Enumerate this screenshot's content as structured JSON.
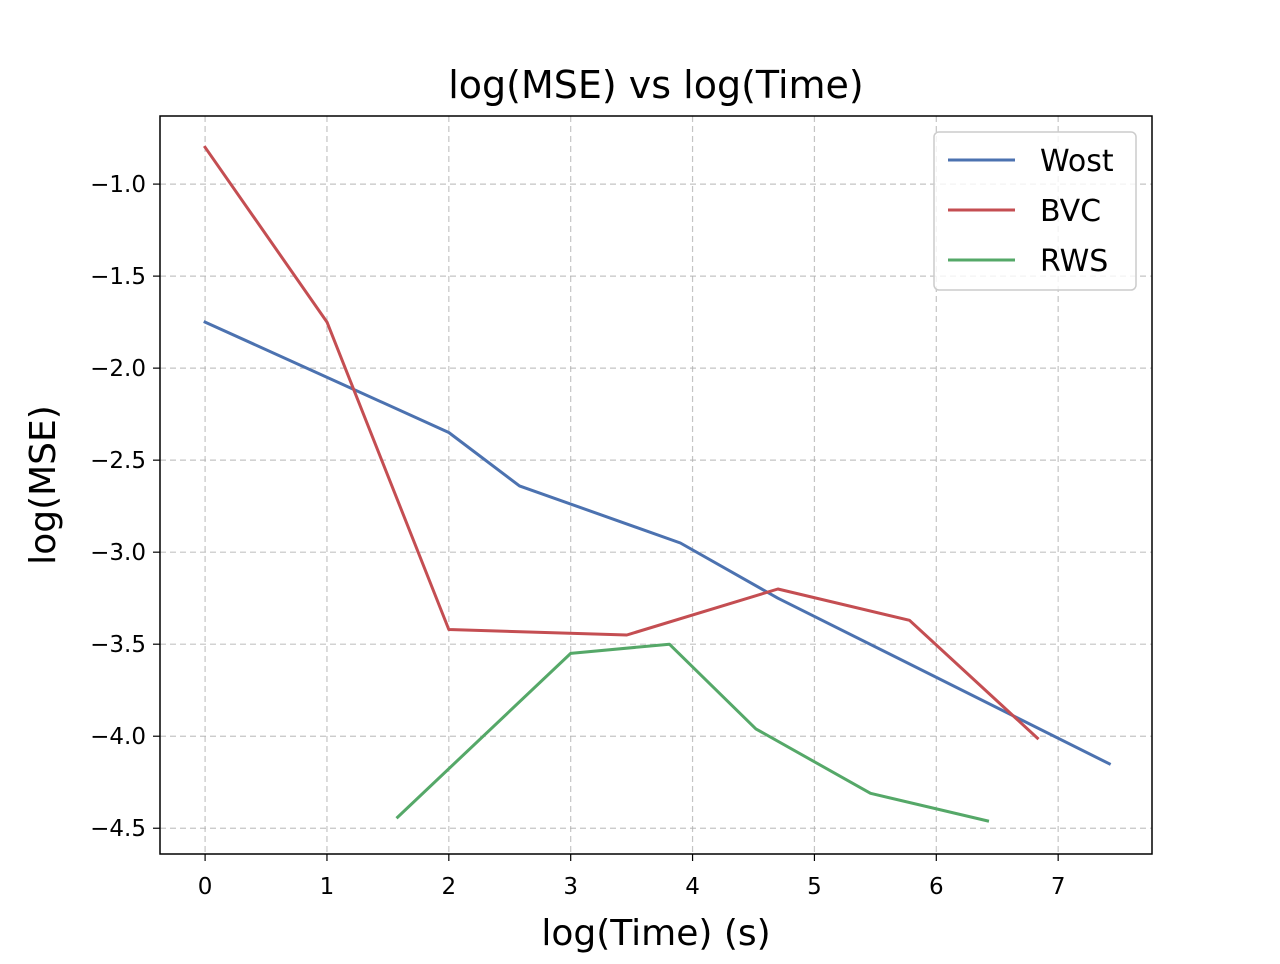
{
  "chart_data": {
    "type": "line",
    "title": "log(MSE) vs log(Time)",
    "xlabel": "log(Time) (s)",
    "ylabel": "log(MSE)",
    "xlim": [
      -0.37,
      7.77
    ],
    "ylim": [
      -4.64,
      -0.63
    ],
    "xticks": [
      0,
      1,
      2,
      3,
      4,
      5,
      6,
      7
    ],
    "xtick_labels": [
      "0",
      "1",
      "2",
      "3",
      "4",
      "5",
      "6",
      "7"
    ],
    "yticks": [
      -1.0,
      -1.5,
      -2.0,
      -2.5,
      -3.0,
      -3.5,
      -4.0,
      -4.5
    ],
    "ytick_labels": [
      "−1.0",
      "−1.5",
      "−2.0",
      "−2.5",
      "−3.0",
      "−3.5",
      "−4.0",
      "−4.5"
    ],
    "grid": true,
    "legend_position": "top-right",
    "series": [
      {
        "name": "Wost",
        "color": "#4C72B0",
        "x": [
          0,
          2,
          2.58,
          3.9,
          4.7,
          7.42
        ],
        "y": [
          -1.75,
          -2.35,
          -2.64,
          -2.95,
          -3.25,
          -4.15
        ]
      },
      {
        "name": "BVC",
        "color": "#C44E52",
        "x": [
          0,
          1,
          2,
          3.46,
          4.7,
          5.78,
          6.83
        ],
        "y": [
          -0.8,
          -1.75,
          -3.42,
          -3.45,
          -3.2,
          -3.37,
          -4.01
        ]
      },
      {
        "name": "RWS",
        "color": "#55A868",
        "x": [
          1.58,
          3,
          3.81,
          4.52,
          5.46,
          6.42
        ],
        "y": [
          -4.44,
          -3.55,
          -3.5,
          -3.96,
          -4.31,
          -4.46
        ]
      }
    ]
  }
}
